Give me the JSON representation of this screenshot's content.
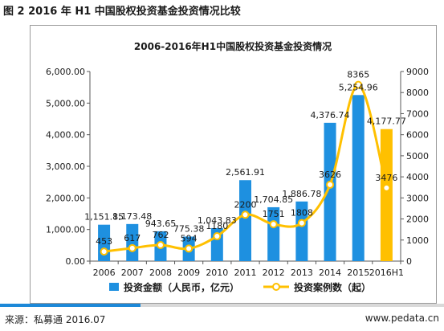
{
  "caption": "图 2 2016 年 H1 中国股权投资基金投资情况比较",
  "source": "来源：私募通 2016.07",
  "site": "www.pedata.cn",
  "chart_data": {
    "type": "bar",
    "title": "2006-2016年H1中国股权投资基金投资情况",
    "categories": [
      "2006",
      "2007",
      "2008",
      "2009",
      "2010",
      "2011",
      "2012",
      "2013",
      "2014",
      "2015",
      "2016H1"
    ],
    "series": [
      {
        "name": "投资金额（人民币，亿元）",
        "type": "bar",
        "axis": "left",
        "values": [
          1151.85,
          1173.48,
          943.65,
          775.38,
          1043.83,
          2561.91,
          1704.85,
          1886.78,
          4376.74,
          5254.96,
          4177.77
        ],
        "labels": [
          "1,151.85",
          "1,173.48",
          "943.65",
          "775.38",
          "1,043.83",
          "2,561.91",
          "1,704.85",
          "1,886.78",
          "4,376.74",
          "5,254.96",
          "4,177.77"
        ],
        "color": "#1e90e0",
        "last_color": "#ffc000"
      },
      {
        "name": "投资案例数（起）",
        "type": "line",
        "axis": "right",
        "values": [
          453,
          617,
          762,
          594,
          1180,
          2200,
          1751,
          1808,
          3626,
          8365,
          3476
        ],
        "labels": [
          "453",
          "617",
          "762",
          "594",
          "1180",
          "2200",
          "1751",
          "1808",
          "3626",
          "8365",
          "3476"
        ],
        "color": "#ffc000"
      }
    ],
    "y_left": {
      "ylim": [
        0,
        6000
      ],
      "ticks": [
        "0.00",
        "1,000.00",
        "2,000.00",
        "3,000.00",
        "4,000.00",
        "5,000.00",
        "6,000.00"
      ]
    },
    "y_right": {
      "ylim": [
        0,
        9000
      ],
      "ticks": [
        "0",
        "1000",
        "2000",
        "3000",
        "4000",
        "5000",
        "6000",
        "7000",
        "8000",
        "9000"
      ]
    },
    "legend_position": "bottom",
    "grid": false
  }
}
